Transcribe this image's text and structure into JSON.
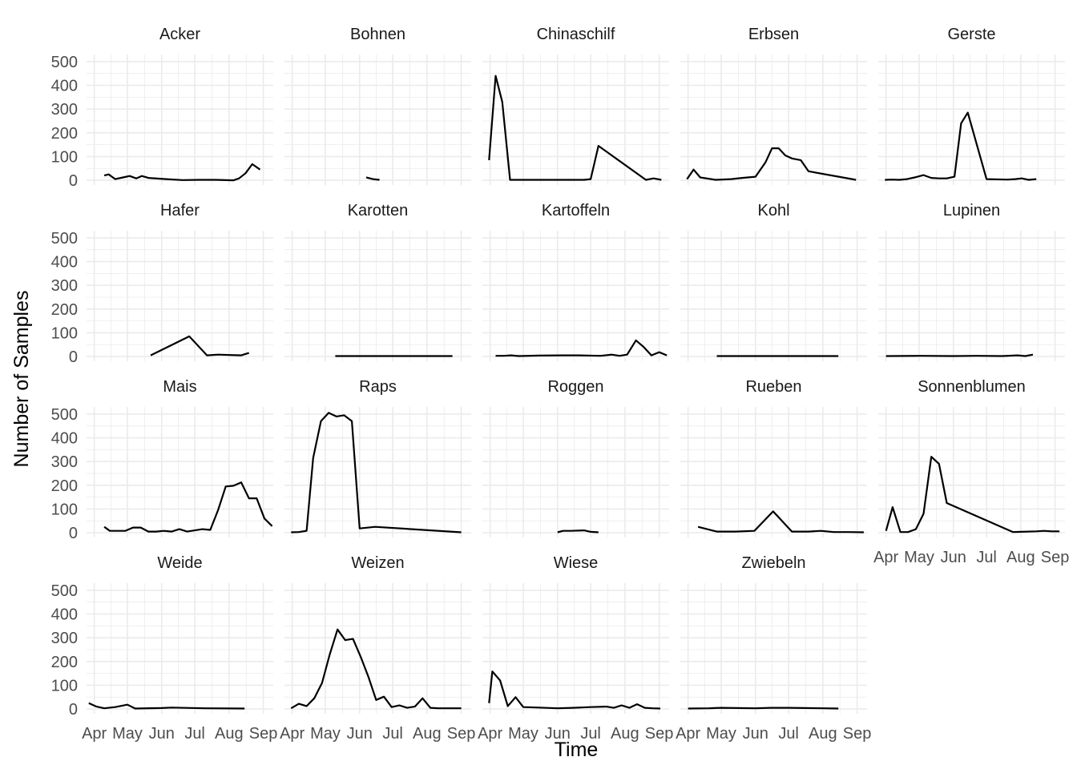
{
  "chart_data": {
    "type": "line",
    "layout": "facet_wrap",
    "xlabel": "Time",
    "ylabel": "Number of Samples",
    "x_ticks": [
      {
        "label": "Apr",
        "date": "2018-04-01"
      },
      {
        "label": "May",
        "date": "2018-05-01"
      },
      {
        "label": "Jun",
        "date": "2018-06-01"
      },
      {
        "label": "Jul",
        "date": "2018-07-01"
      },
      {
        "label": "Aug",
        "date": "2018-08-01"
      },
      {
        "label": "Sep",
        "date": "2018-09-01"
      }
    ],
    "xlim": [
      "2018-03-25",
      "2018-09-10"
    ],
    "y_ticks": [
      0,
      100,
      200,
      300,
      400,
      500
    ],
    "ylim": [
      -20,
      530
    ],
    "grid": true,
    "line_color": "#000000",
    "facets": [
      {
        "name": "Acker",
        "segments": [
          [
            [
              "2018-04-10",
              20
            ],
            [
              "2018-04-14",
              25
            ],
            [
              "2018-04-20",
              5
            ],
            [
              "2018-04-27",
              12
            ],
            [
              "2018-05-03",
              18
            ],
            [
              "2018-05-09",
              8
            ],
            [
              "2018-05-14",
              18
            ],
            [
              "2018-05-20",
              10
            ],
            [
              "2018-06-05",
              5
            ],
            [
              "2018-06-20",
              1
            ],
            [
              "2018-07-05",
              2
            ],
            [
              "2018-07-20",
              2
            ],
            [
              "2018-08-05",
              0
            ],
            [
              "2018-08-10",
              8
            ],
            [
              "2018-08-16",
              30
            ],
            [
              "2018-08-22",
              68
            ],
            [
              "2018-08-29",
              45
            ]
          ]
        ]
      },
      {
        "name": "Bohnen",
        "segments": [
          [
            [
              "2018-06-07",
              12
            ],
            [
              "2018-06-13",
              5
            ],
            [
              "2018-06-19",
              2
            ]
          ]
        ]
      },
      {
        "name": "Chinaschilf",
        "segments": [
          [
            [
              "2018-03-31",
              85
            ],
            [
              "2018-04-06",
              440
            ],
            [
              "2018-04-12",
              330
            ],
            [
              "2018-04-19",
              2
            ],
            [
              "2018-05-10",
              2
            ],
            [
              "2018-06-10",
              2
            ],
            [
              "2018-06-25",
              2
            ],
            [
              "2018-07-01",
              5
            ],
            [
              "2018-07-08",
              145
            ],
            [
              "2018-08-20",
              2
            ],
            [
              "2018-08-27",
              8
            ],
            [
              "2018-09-03",
              2
            ]
          ]
        ]
      },
      {
        "name": "Erbsen",
        "segments": [
          [
            [
              "2018-03-31",
              5
            ],
            [
              "2018-04-06",
              45
            ],
            [
              "2018-04-12",
              12
            ],
            [
              "2018-04-26",
              2
            ],
            [
              "2018-05-10",
              5
            ],
            [
              "2018-05-20",
              10
            ],
            [
              "2018-06-01",
              15
            ],
            [
              "2018-06-10",
              75
            ],
            [
              "2018-06-16",
              135
            ],
            [
              "2018-06-22",
              135
            ],
            [
              "2018-06-28",
              105
            ],
            [
              "2018-07-04",
              92
            ],
            [
              "2018-07-12",
              85
            ],
            [
              "2018-07-19",
              38
            ],
            [
              "2018-08-31",
              2
            ]
          ]
        ]
      },
      {
        "name": "Gerste",
        "segments": [
          [
            [
              "2018-03-31",
              2
            ],
            [
              "2018-04-06",
              3
            ],
            [
              "2018-04-13",
              2
            ],
            [
              "2018-04-20",
              5
            ],
            [
              "2018-04-27",
              12
            ],
            [
              "2018-05-05",
              22
            ],
            [
              "2018-05-12",
              10
            ],
            [
              "2018-05-19",
              8
            ],
            [
              "2018-05-26",
              8
            ],
            [
              "2018-06-02",
              15
            ],
            [
              "2018-06-08",
              240
            ],
            [
              "2018-06-14",
              285
            ],
            [
              "2018-07-01",
              5
            ],
            [
              "2018-07-20",
              3
            ],
            [
              "2018-07-27",
              5
            ],
            [
              "2018-08-02",
              8
            ],
            [
              "2018-08-08",
              2
            ],
            [
              "2018-08-15",
              5
            ]
          ]
        ]
      },
      {
        "name": "Hafer",
        "segments": [
          [
            [
              "2018-05-22",
              5
            ],
            [
              "2018-06-26",
              85
            ],
            [
              "2018-07-12",
              5
            ],
            [
              "2018-07-22",
              8
            ],
            [
              "2018-08-12",
              5
            ],
            [
              "2018-08-19",
              15
            ]
          ]
        ]
      },
      {
        "name": "Karotten",
        "segments": [
          [
            [
              "2018-05-10",
              2
            ],
            [
              "2018-07-01",
              2
            ],
            [
              "2018-08-10",
              2
            ],
            [
              "2018-08-24",
              2
            ]
          ]
        ]
      },
      {
        "name": "Kartoffeln",
        "segments": [
          [
            [
              "2018-04-06",
              3
            ],
            [
              "2018-04-13",
              3
            ],
            [
              "2018-04-20",
              5
            ],
            [
              "2018-04-27",
              2
            ],
            [
              "2018-05-15",
              4
            ],
            [
              "2018-06-05",
              5
            ],
            [
              "2018-06-20",
              5
            ],
            [
              "2018-07-10",
              3
            ],
            [
              "2018-07-20",
              8
            ],
            [
              "2018-07-27",
              3
            ],
            [
              "2018-08-03",
              8
            ],
            [
              "2018-08-11",
              68
            ],
            [
              "2018-08-18",
              40
            ],
            [
              "2018-08-25",
              5
            ],
            [
              "2018-09-01",
              18
            ],
            [
              "2018-09-08",
              5
            ]
          ]
        ]
      },
      {
        "name": "Kohl",
        "segments": [
          [
            [
              "2018-04-27",
              2
            ],
            [
              "2018-06-01",
              2
            ],
            [
              "2018-07-01",
              2
            ],
            [
              "2018-08-01",
              2
            ],
            [
              "2018-08-15",
              2
            ]
          ]
        ]
      },
      {
        "name": "Lupinen",
        "segments": [
          [
            [
              "2018-04-01",
              2
            ],
            [
              "2018-05-01",
              3
            ],
            [
              "2018-06-01",
              2
            ],
            [
              "2018-06-22",
              3
            ],
            [
              "2018-07-15",
              2
            ],
            [
              "2018-07-29",
              5
            ],
            [
              "2018-08-05",
              2
            ],
            [
              "2018-08-12",
              8
            ]
          ]
        ]
      },
      {
        "name": "Mais",
        "segments": [
          [
            [
              "2018-04-10",
              25
            ],
            [
              "2018-04-15",
              8
            ],
            [
              "2018-04-22",
              8
            ],
            [
              "2018-04-29",
              8
            ],
            [
              "2018-05-06",
              22
            ],
            [
              "2018-05-13",
              22
            ],
            [
              "2018-05-20",
              5
            ],
            [
              "2018-05-27",
              5
            ],
            [
              "2018-06-03",
              8
            ],
            [
              "2018-06-10",
              5
            ],
            [
              "2018-06-17",
              15
            ],
            [
              "2018-06-24",
              5
            ],
            [
              "2018-07-01",
              10
            ],
            [
              "2018-07-08",
              15
            ],
            [
              "2018-07-15",
              12
            ],
            [
              "2018-07-22",
              95
            ],
            [
              "2018-07-29",
              195
            ],
            [
              "2018-08-05",
              198
            ],
            [
              "2018-08-12",
              212
            ],
            [
              "2018-08-19",
              145
            ],
            [
              "2018-08-26",
              145
            ],
            [
              "2018-09-02",
              60
            ],
            [
              "2018-09-09",
              28
            ]
          ]
        ]
      },
      {
        "name": "Raps",
        "segments": [
          [
            [
              "2018-03-31",
              2
            ],
            [
              "2018-04-07",
              3
            ],
            [
              "2018-04-14",
              8
            ],
            [
              "2018-04-20",
              315
            ],
            [
              "2018-04-27",
              470
            ],
            [
              "2018-05-04",
              505
            ],
            [
              "2018-05-11",
              490
            ],
            [
              "2018-05-18",
              495
            ],
            [
              "2018-05-25",
              470
            ],
            [
              "2018-06-01",
              18
            ],
            [
              "2018-06-15",
              25
            ],
            [
              "2018-09-01",
              2
            ]
          ]
        ]
      },
      {
        "name": "Roggen",
        "segments": [
          [
            [
              "2018-06-01",
              2
            ],
            [
              "2018-06-06",
              8
            ],
            [
              "2018-06-13",
              8
            ],
            [
              "2018-06-25",
              10
            ],
            [
              "2018-07-01",
              4
            ],
            [
              "2018-07-08",
              2
            ]
          ]
        ]
      },
      {
        "name": "Rueben",
        "segments": [
          [
            [
              "2018-04-10",
              25
            ],
            [
              "2018-04-27",
              5
            ],
            [
              "2018-05-14",
              5
            ],
            [
              "2018-05-31",
              8
            ],
            [
              "2018-06-17",
              90
            ],
            [
              "2018-07-04",
              5
            ],
            [
              "2018-07-19",
              5
            ],
            [
              "2018-07-30",
              8
            ],
            [
              "2018-08-11",
              3
            ],
            [
              "2018-08-24",
              3
            ],
            [
              "2018-09-07",
              2
            ]
          ]
        ]
      },
      {
        "name": "Sonnenblumen",
        "segments": [
          [
            [
              "2018-04-01",
              8
            ],
            [
              "2018-04-07",
              108
            ],
            [
              "2018-04-14",
              3
            ],
            [
              "2018-04-21",
              3
            ],
            [
              "2018-04-28",
              15
            ],
            [
              "2018-05-05",
              80
            ],
            [
              "2018-05-12",
              320
            ],
            [
              "2018-05-19",
              290
            ],
            [
              "2018-05-26",
              125
            ],
            [
              "2018-07-25",
              3
            ],
            [
              "2018-08-15",
              6
            ],
            [
              "2018-08-22",
              8
            ],
            [
              "2018-08-29",
              6
            ],
            [
              "2018-09-05",
              6
            ]
          ]
        ]
      },
      {
        "name": "Weide",
        "segments": [
          [
            [
              "2018-03-27",
              25
            ],
            [
              "2018-04-03",
              10
            ],
            [
              "2018-04-10",
              3
            ],
            [
              "2018-04-20",
              8
            ],
            [
              "2018-05-01",
              18
            ],
            [
              "2018-05-08",
              2
            ],
            [
              "2018-06-01",
              4
            ],
            [
              "2018-06-10",
              6
            ],
            [
              "2018-07-10",
              3
            ],
            [
              "2018-08-15",
              2
            ]
          ]
        ]
      },
      {
        "name": "Weizen",
        "segments": [
          [
            [
              "2018-03-31",
              3
            ],
            [
              "2018-04-07",
              22
            ],
            [
              "2018-04-14",
              12
            ],
            [
              "2018-04-21",
              45
            ],
            [
              "2018-04-28",
              110
            ],
            [
              "2018-05-05",
              230
            ],
            [
              "2018-05-12",
              335
            ],
            [
              "2018-05-19",
              290
            ],
            [
              "2018-05-26",
              295
            ],
            [
              "2018-06-02",
              220
            ],
            [
              "2018-06-09",
              135
            ],
            [
              "2018-06-16",
              38
            ],
            [
              "2018-06-23",
              52
            ],
            [
              "2018-06-30",
              8
            ],
            [
              "2018-07-07",
              15
            ],
            [
              "2018-07-14",
              5
            ],
            [
              "2018-07-21",
              10
            ],
            [
              "2018-07-28",
              45
            ],
            [
              "2018-08-04",
              5
            ],
            [
              "2018-08-11",
              3
            ],
            [
              "2018-08-25",
              3
            ],
            [
              "2018-09-01",
              3
            ]
          ]
        ]
      },
      {
        "name": "Wiese",
        "segments": [
          [
            [
              "2018-03-31",
              25
            ],
            [
              "2018-04-03",
              158
            ],
            [
              "2018-04-10",
              120
            ],
            [
              "2018-04-17",
              12
            ],
            [
              "2018-04-24",
              50
            ],
            [
              "2018-05-01",
              8
            ],
            [
              "2018-05-15",
              6
            ],
            [
              "2018-06-01",
              3
            ],
            [
              "2018-06-15",
              5
            ],
            [
              "2018-07-01",
              8
            ],
            [
              "2018-07-15",
              10
            ],
            [
              "2018-07-22",
              5
            ],
            [
              "2018-07-29",
              15
            ],
            [
              "2018-08-05",
              5
            ],
            [
              "2018-08-12",
              20
            ],
            [
              "2018-08-19",
              5
            ],
            [
              "2018-08-26",
              3
            ],
            [
              "2018-09-02",
              2
            ]
          ]
        ]
      },
      {
        "name": "Zwiebeln",
        "segments": [
          [
            [
              "2018-04-01",
              2
            ],
            [
              "2018-04-20",
              3
            ],
            [
              "2018-05-01",
              5
            ],
            [
              "2018-06-01",
              3
            ],
            [
              "2018-06-15",
              5
            ],
            [
              "2018-07-01",
              5
            ],
            [
              "2018-07-15",
              4
            ],
            [
              "2018-08-01",
              3
            ],
            [
              "2018-08-15",
              2
            ]
          ]
        ]
      }
    ]
  }
}
